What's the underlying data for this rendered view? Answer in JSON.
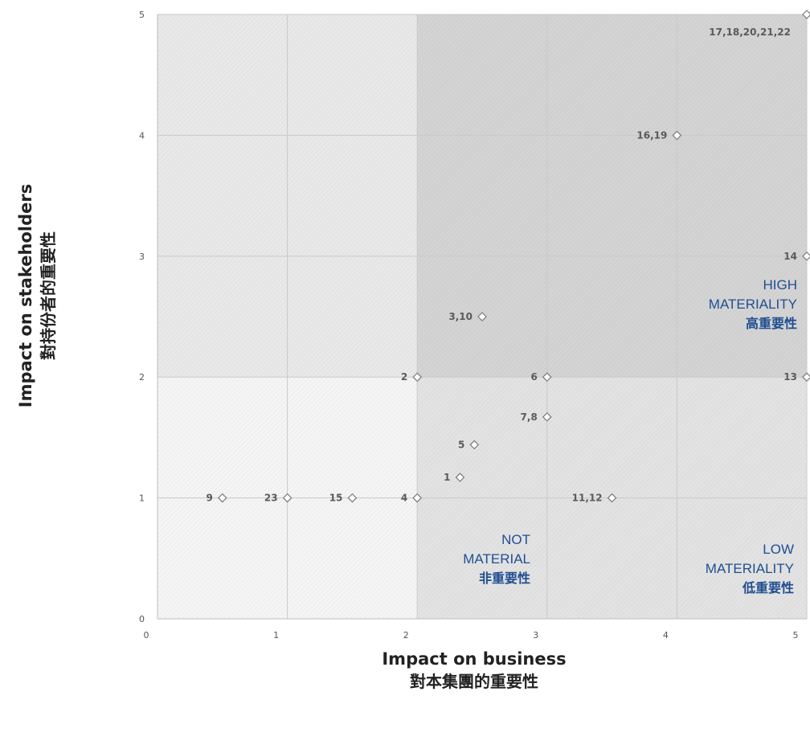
{
  "chart_data": {
    "type": "scatter",
    "xlabel": "Impact on business",
    "xlabel_zh": "對本集團的重要性",
    "ylabel": "Impact on stakeholders",
    "ylabel_zh": "對持份者的重要性",
    "xlim": [
      0,
      5
    ],
    "ylim": [
      0,
      5
    ],
    "x_ticks": [
      "0",
      "1",
      "2",
      "3",
      "4",
      "5"
    ],
    "y_ticks": [
      "0",
      "1",
      "2",
      "3",
      "4",
      "5"
    ],
    "grid": true,
    "zones": [
      {
        "name": "not-material",
        "x": [
          0,
          2
        ],
        "y": [
          0,
          2
        ],
        "label_lines": [
          "NOT",
          "MATERIAL",
          "非重要性"
        ],
        "color": "#f5f5f5"
      },
      {
        "name": "stakeholder-upper-left",
        "x": [
          0,
          2
        ],
        "y": [
          2,
          5
        ],
        "label_lines": [],
        "color": "#e9e9e9"
      },
      {
        "name": "low-materiality",
        "x": [
          2,
          5
        ],
        "y": [
          0,
          2
        ],
        "label_lines": [
          "LOW",
          "MATERIALITY",
          "低重要性"
        ],
        "color": "#e3e3e3"
      },
      {
        "name": "high-materiality",
        "x": [
          2,
          5
        ],
        "y": [
          2,
          5
        ],
        "label_lines": [
          "HIGH",
          "MATERIALITY",
          "高重要性"
        ],
        "color": "#d4d4d4"
      }
    ],
    "points": [
      {
        "label": "9",
        "x": 0.5,
        "y": 1
      },
      {
        "label": "23",
        "x": 1,
        "y": 1
      },
      {
        "label": "15",
        "x": 1.5,
        "y": 1
      },
      {
        "label": "4",
        "x": 2,
        "y": 1
      },
      {
        "label": "1",
        "x": 2.33,
        "y": 1.17
      },
      {
        "label": "5",
        "x": 2.44,
        "y": 1.44
      },
      {
        "label": "7,8",
        "x": 3,
        "y": 1.67
      },
      {
        "label": "2",
        "x": 2,
        "y": 2
      },
      {
        "label": "6",
        "x": 3,
        "y": 2
      },
      {
        "label": "3,10",
        "x": 2.5,
        "y": 2.5
      },
      {
        "label": "11,12",
        "x": 3.5,
        "y": 1
      },
      {
        "label": "13",
        "x": 5,
        "y": 2
      },
      {
        "label": "14",
        "x": 5,
        "y": 3
      },
      {
        "label": "16,19",
        "x": 4,
        "y": 4
      },
      {
        "label": "17,18,20,21,22",
        "x": 5,
        "y": 5
      }
    ]
  }
}
